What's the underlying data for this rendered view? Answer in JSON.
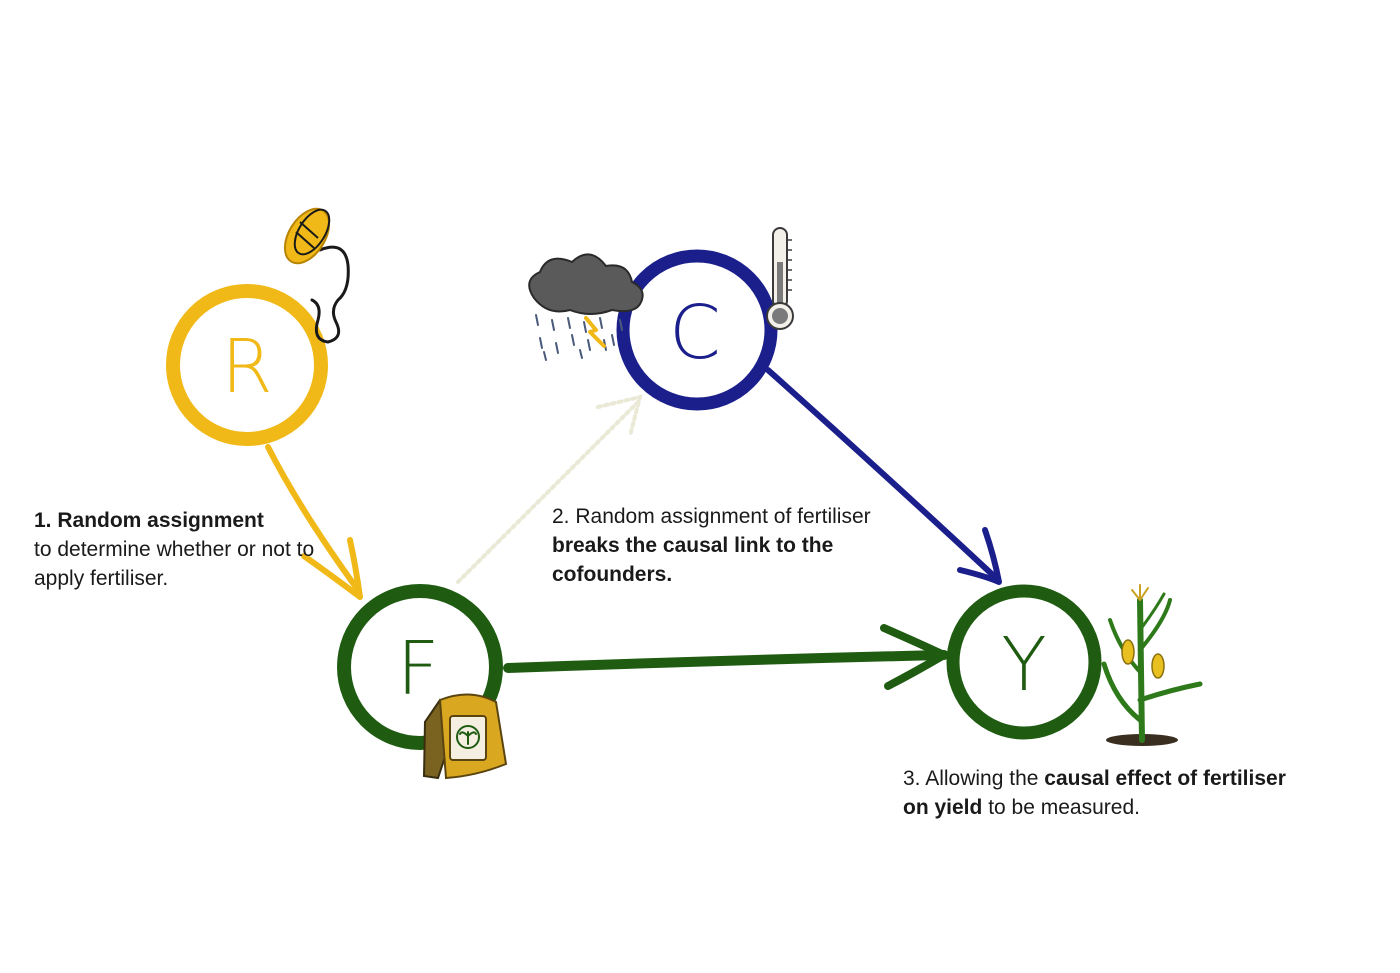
{
  "nodes": {
    "r": {
      "letter": "R",
      "color": "#f0b917"
    },
    "c": {
      "letter": "C",
      "color": "#1b1f8c"
    },
    "f": {
      "letter": "F",
      "color": "#1f5c12"
    },
    "y": {
      "letter": "Y",
      "color": "#1f5c12"
    }
  },
  "edges": [
    {
      "from": "R",
      "to": "F",
      "color": "#f0b917"
    },
    {
      "from": "F",
      "to": "C",
      "color": "#eeeedc",
      "style": "dashed"
    },
    {
      "from": "C",
      "to": "Y",
      "color": "#1b1f8c"
    },
    {
      "from": "F",
      "to": "Y",
      "color": "#1f5c12"
    }
  ],
  "captions": {
    "one": {
      "bold": "1. Random assignment",
      "rest": "to determine whether or not to apply fertiliser."
    },
    "two": {
      "lead": "2. Random assignment of fertiliser",
      "bold": "breaks the causal link to the cofounders."
    },
    "three": {
      "lead": "3. Allowing the",
      "bold": "causal effect of fertiliser on yield",
      "rest": "to be measured."
    }
  },
  "icons": [
    "coin-icon",
    "raincloud-icon",
    "thermometer-icon",
    "fertiliser-bag-icon",
    "corn-plant-icon"
  ]
}
